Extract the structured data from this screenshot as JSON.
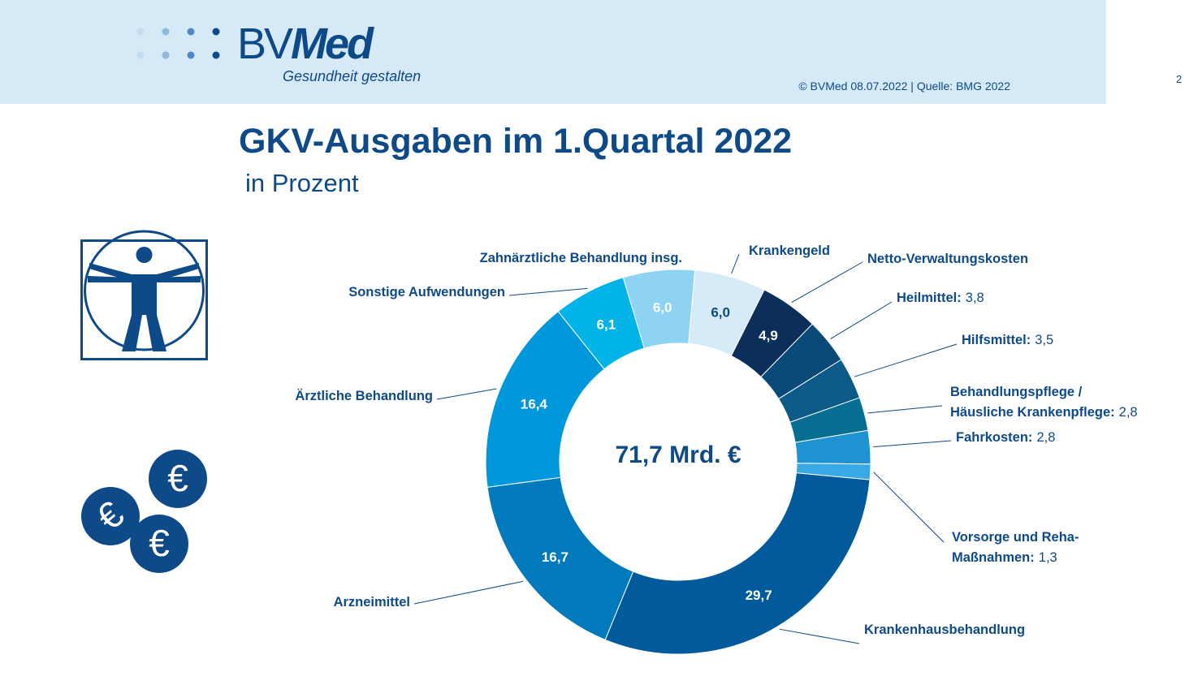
{
  "header": {
    "logo_text_part1": "BV",
    "logo_text_part2": "Med",
    "tagline": "Gesundheit gestalten",
    "copyright": "© BVMed 08.07.2022 | Quelle: BMG 2022",
    "page_number": "2"
  },
  "chart_data": {
    "type": "pie",
    "title": "GKV-Ausgaben im 1.Quartal 2022",
    "subtitle": "in Prozent",
    "center_label": "71,7 Mrd. €",
    "slices": [
      {
        "label": "Krankengeld",
        "value": 6.0,
        "value_text": "6,0",
        "color": "#d6ebf8",
        "value_color": "#0e4a87",
        "show_inside": true
      },
      {
        "label": "Netto-Verwaltungskosten",
        "value": 4.9,
        "value_text": "4,9",
        "color": "#0b2f5a",
        "value_color": "#ffffff",
        "show_inside": true
      },
      {
        "label": "Heilmittel:",
        "value": 3.8,
        "value_text": "3,8",
        "color": "#0a4a78",
        "show_inside": false
      },
      {
        "label": "Hilfsmittel:",
        "value": 3.5,
        "value_text": "3,5",
        "color": "#0b5a87",
        "show_inside": false
      },
      {
        "label": "Behandlungspflege /",
        "label2": "Häusliche Krankenpflege:",
        "value": 2.8,
        "value_text": "2,8",
        "color": "#066e92",
        "show_inside": false
      },
      {
        "label": "Fahrkosten:",
        "value": 2.8,
        "value_text": "2,8",
        "color": "#1f93d2",
        "show_inside": false
      },
      {
        "label": "Vorsorge und Reha-",
        "label2": "Maßnahmen:",
        "value": 1.3,
        "value_text": "1,3",
        "color": "#3aa8e4",
        "show_inside": false
      },
      {
        "label": "Krankenhausbehandlung",
        "value": 29.7,
        "value_text": "29,7",
        "color": "#005a9b",
        "value_color": "#ffffff",
        "show_inside": true
      },
      {
        "label": "Arzneimittel",
        "value": 16.7,
        "value_text": "16,7",
        "color": "#0079bd",
        "value_color": "#ffffff",
        "show_inside": true
      },
      {
        "label": "Ärztliche Behandlung",
        "value": 16.4,
        "value_text": "16,4",
        "color": "#0098dd",
        "value_color": "#ffffff",
        "show_inside": true
      },
      {
        "label": "Sonstige Aufwendungen",
        "value": 6.1,
        "value_text": "6,1",
        "color": "#00b4e8",
        "value_color": "#ffffff",
        "show_inside": true
      },
      {
        "label": "Zahnärztliche Behandlung insg.",
        "value": 6.0,
        "value_text": "6,0",
        "color": "#8fd3f4",
        "value_color": "#ffffff",
        "show_inside": true
      }
    ]
  },
  "icons": {
    "human": "vitruvian-man-icon",
    "coins": "euro-coins-icon"
  },
  "colors": {
    "brand": "#0e4a87",
    "header_bg": "#d6e9f7"
  }
}
